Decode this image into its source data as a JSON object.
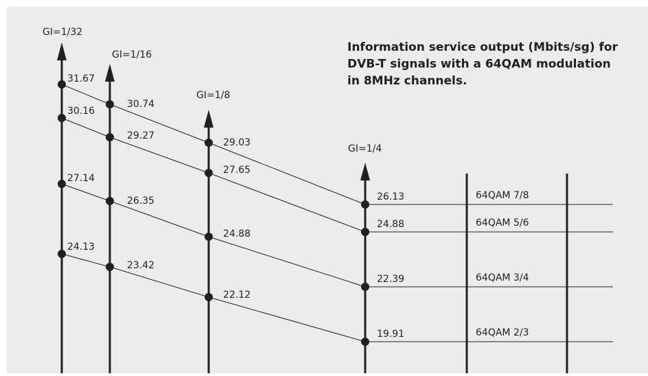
{
  "title": [
    "Information service output (Mbits/sg) for",
    "DVB-T signals with a 64QAM modulation",
    "in 8MHz channels."
  ],
  "axes": [
    {
      "label": "GI=1/32",
      "values": [
        "31.67",
        "30.16",
        "27.14",
        "24.13"
      ]
    },
    {
      "label": "GI=1/16",
      "values": [
        "30.74",
        "29.27",
        "26.35",
        "23.42"
      ]
    },
    {
      "label": "GI=1/8",
      "values": [
        "29.03",
        "27.65",
        "24.88",
        "22.12"
      ]
    },
    {
      "label": "GI=1/4",
      "values": [
        "26.13",
        "24.88",
        "22.39",
        "19.91"
      ]
    }
  ],
  "rates": [
    "64QAM 7/8",
    "64QAM 5/6",
    "64QAM 3/4",
    "64QAM 2/3"
  ]
}
